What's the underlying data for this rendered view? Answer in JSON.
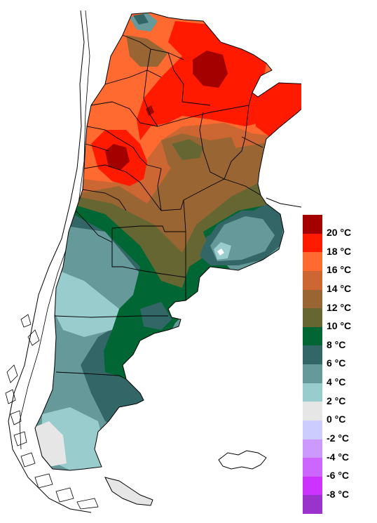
{
  "legend": {
    "items": [
      {
        "label": "20 °C",
        "color": "#a50000"
      },
      {
        "label": "18 °C",
        "color": "#ff1a00"
      },
      {
        "label": "16 °C",
        "color": "#ff6a30"
      },
      {
        "label": "14 °C",
        "color": "#cc6633"
      },
      {
        "label": "12 °C",
        "color": "#996633"
      },
      {
        "label": "10 °C",
        "color": "#666633"
      },
      {
        "label": "8 °C",
        "color": "#006633"
      },
      {
        "label": "6 °C",
        "color": "#336666"
      },
      {
        "label": "4 °C",
        "color": "#669999"
      },
      {
        "label": "2 °C",
        "color": "#99cccc"
      },
      {
        "label": "0 °C",
        "color": "#e6e6e6"
      },
      {
        "label": "-2 °C",
        "color": "#ccccff"
      },
      {
        "label": "-4 °C",
        "color": "#cc99ff"
      },
      {
        "label": "-6 °C",
        "color": "#cc66ff"
      },
      {
        "label": "-8 °C",
        "color": "#cc33ff"
      },
      {
        "label": "",
        "color": "#9933cc"
      }
    ]
  }
}
